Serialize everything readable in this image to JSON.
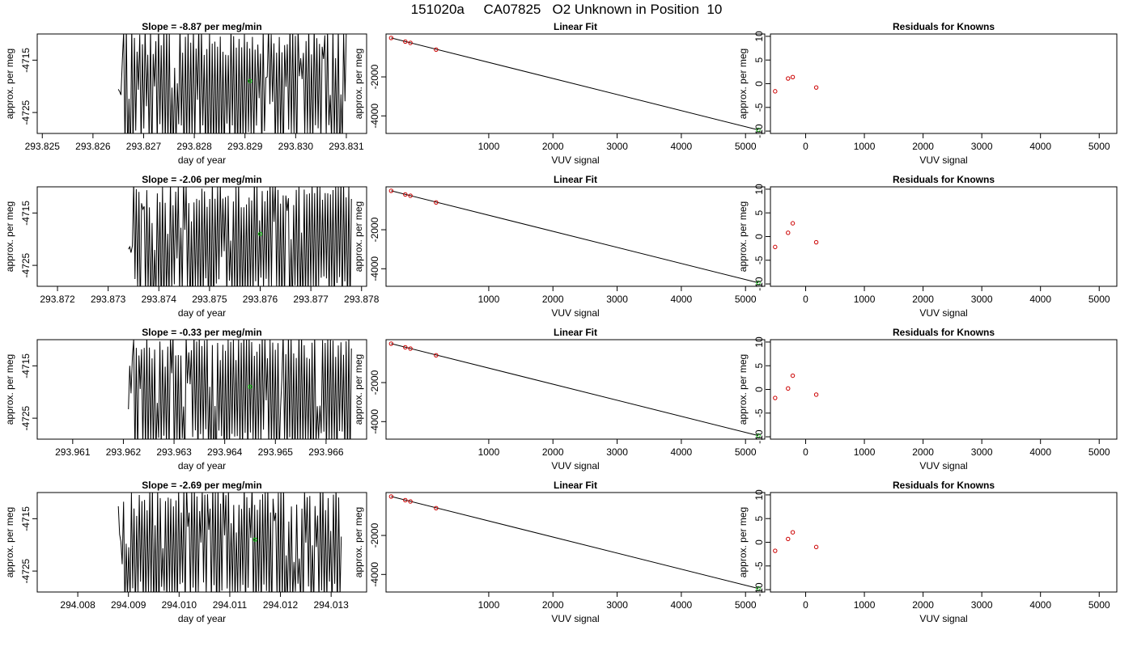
{
  "figure": {
    "title": "151020a     CA07825   O2 Unknown in Position  10"
  },
  "colors": {
    "line": "#000000",
    "knowns": "#cc0000",
    "unknown": "#00cc00"
  },
  "chart_data": [
    {
      "type": "line",
      "panel": "time-series",
      "title": "Slope =  -8.87  per meg/min",
      "xlabel": "day of year",
      "ylabel": "approx. per meg",
      "xlim": [
        293.8249,
        293.8314
      ],
      "ylim": [
        -4729,
        -4710
      ],
      "xticks": [
        "293.825",
        "293.826",
        "293.827",
        "293.828",
        "293.829",
        "293.830",
        "293.831"
      ],
      "yticks": [
        "-4715",
        "-4725"
      ],
      "start": 293.8265,
      "end": 293.831,
      "unknown_point": {
        "x": 293.8291,
        "y": -4719
      }
    },
    {
      "type": "scatter",
      "panel": "linear-fit",
      "title": "Linear Fit",
      "xlabel": "VUV signal",
      "ylabel": "approx. per meg",
      "xlim": [
        -600,
        5300
      ],
      "ylim": [
        -4900,
        200
      ],
      "xticks": [
        "1000",
        "2000",
        "3000",
        "4000",
        "5000"
      ],
      "yticks": [
        "-2000",
        "-4000"
      ],
      "knowns": [
        {
          "x": -520,
          "y": -4
        },
        {
          "x": -300,
          "y": -190
        },
        {
          "x": -220,
          "y": -260
        },
        {
          "x": 180,
          "y": -600
        }
      ],
      "unknown": {
        "x": 5200,
        "y": -4719
      },
      "fit_line": [
        {
          "x": -520,
          "y": -4
        },
        {
          "x": 5200,
          "y": -4719
        }
      ]
    },
    {
      "type": "scatter",
      "panel": "residuals",
      "title": "Residuals for Knowns",
      "xlabel": "VUV signal",
      "ylabel": "approx. per meg",
      "xlim": [
        -600,
        5300
      ],
      "ylim": [
        -10.5,
        10.5
      ],
      "xticks": [
        "0",
        "1000",
        "2000",
        "3000",
        "4000",
        "5000"
      ],
      "yticks": [
        "-10",
        "-5",
        "0",
        "5",
        "10"
      ],
      "points": [
        {
          "x": -520,
          "y": -1.6
        },
        {
          "x": -300,
          "y": 1.1
        },
        {
          "x": -220,
          "y": 1.4
        },
        {
          "x": 180,
          "y": -0.8
        }
      ]
    },
    {
      "type": "line",
      "panel": "time-series",
      "title": "Slope =  -2.06  per meg/min",
      "xlabel": "day of year",
      "ylabel": "approx. per meg",
      "xlim": [
        293.8716,
        293.8781
      ],
      "ylim": [
        -4729,
        -4710
      ],
      "xticks": [
        "293.872",
        "293.873",
        "293.874",
        "293.875",
        "293.876",
        "293.877",
        "293.878"
      ],
      "yticks": [
        "-4715",
        "-4725"
      ],
      "start": 293.8734,
      "end": 293.8778,
      "unknown_point": {
        "x": 293.876,
        "y": -4719
      }
    },
    {
      "type": "scatter",
      "panel": "linear-fit",
      "title": "Linear Fit",
      "xlabel": "VUV signal",
      "ylabel": "approx. per meg",
      "xlim": [
        -600,
        5300
      ],
      "ylim": [
        -4900,
        200
      ],
      "xticks": [
        "1000",
        "2000",
        "3000",
        "4000",
        "5000"
      ],
      "yticks": [
        "-2000",
        "-4000"
      ],
      "knowns": [
        {
          "x": -520,
          "y": -4
        },
        {
          "x": -300,
          "y": -190
        },
        {
          "x": -220,
          "y": -260
        },
        {
          "x": 180,
          "y": -600
        }
      ],
      "unknown": {
        "x": 5200,
        "y": -4719
      },
      "fit_line": [
        {
          "x": -520,
          "y": -4
        },
        {
          "x": 5200,
          "y": -4719
        }
      ]
    },
    {
      "type": "scatter",
      "panel": "residuals",
      "title": "Residuals for Knowns",
      "xlabel": "VUV signal",
      "ylabel": "approx. per meg",
      "xlim": [
        -600,
        5300
      ],
      "ylim": [
        -10.5,
        10.5
      ],
      "xticks": [
        "0",
        "1000",
        "2000",
        "3000",
        "4000",
        "5000"
      ],
      "yticks": [
        "-10",
        "-5",
        "0",
        "5",
        "10"
      ],
      "points": [
        {
          "x": -520,
          "y": -2.2
        },
        {
          "x": -300,
          "y": 0.8
        },
        {
          "x": -220,
          "y": 2.8
        },
        {
          "x": 180,
          "y": -1.2
        }
      ]
    },
    {
      "type": "line",
      "panel": "time-series",
      "title": "Slope =  -0.33  per meg/min",
      "xlabel": "day of year",
      "ylabel": "approx. per meg",
      "xlim": [
        293.9603,
        293.9668
      ],
      "ylim": [
        -4729,
        -4710
      ],
      "xticks": [
        "293.961",
        "293.962",
        "293.963",
        "293.964",
        "293.965",
        "293.966"
      ],
      "yticks": [
        "-4715",
        "-4725"
      ],
      "start": 293.9621,
      "end": 293.9665,
      "unknown_point": {
        "x": 293.9645,
        "y": -4719
      }
    },
    {
      "type": "scatter",
      "panel": "linear-fit",
      "title": "Linear Fit",
      "xlabel": "VUV signal",
      "ylabel": "approx. per meg",
      "xlim": [
        -600,
        5300
      ],
      "ylim": [
        -4900,
        200
      ],
      "xticks": [
        "1000",
        "2000",
        "3000",
        "4000",
        "5000"
      ],
      "yticks": [
        "-2000",
        "-4000"
      ],
      "knowns": [
        {
          "x": -520,
          "y": -4
        },
        {
          "x": -300,
          "y": -190
        },
        {
          "x": -220,
          "y": -260
        },
        {
          "x": 180,
          "y": -600
        }
      ],
      "unknown": {
        "x": 5200,
        "y": -4719
      },
      "fit_line": [
        {
          "x": -520,
          "y": -4
        },
        {
          "x": 5200,
          "y": -4719
        }
      ]
    },
    {
      "type": "scatter",
      "panel": "residuals",
      "title": "Residuals for Knowns",
      "xlabel": "VUV signal",
      "ylabel": "approx. per meg",
      "xlim": [
        -600,
        5300
      ],
      "ylim": [
        -10.5,
        10.5
      ],
      "xticks": [
        "0",
        "1000",
        "2000",
        "3000",
        "4000",
        "5000"
      ],
      "yticks": [
        "-10",
        "-5",
        "0",
        "5",
        "10"
      ],
      "points": [
        {
          "x": -520,
          "y": -1.8
        },
        {
          "x": -300,
          "y": 0.2
        },
        {
          "x": -220,
          "y": 2.9
        },
        {
          "x": 180,
          "y": -1.1
        }
      ]
    },
    {
      "type": "line",
      "panel": "time-series",
      "title": "Slope =  -2.69  per meg/min",
      "xlabel": "day of year",
      "ylabel": "approx. per meg",
      "xlim": [
        294.0072,
        294.0137
      ],
      "ylim": [
        -4729,
        -4710
      ],
      "xticks": [
        "294.008",
        "294.009",
        "294.010",
        "294.011",
        "294.012",
        "294.013"
      ],
      "yticks": [
        "-4715",
        "-4725"
      ],
      "start": 294.0088,
      "end": 294.0132,
      "unknown_point": {
        "x": 294.0115,
        "y": -4719
      }
    },
    {
      "type": "scatter",
      "panel": "linear-fit",
      "title": "Linear Fit",
      "xlabel": "VUV signal",
      "ylabel": "approx. per meg",
      "xlim": [
        -600,
        5300
      ],
      "ylim": [
        -4900,
        200
      ],
      "xticks": [
        "1000",
        "2000",
        "3000",
        "4000",
        "5000"
      ],
      "yticks": [
        "-2000",
        "-4000"
      ],
      "knowns": [
        {
          "x": -520,
          "y": -4
        },
        {
          "x": -300,
          "y": -190
        },
        {
          "x": -220,
          "y": -260
        },
        {
          "x": 180,
          "y": -600
        }
      ],
      "unknown": {
        "x": 5200,
        "y": -4719
      },
      "fit_line": [
        {
          "x": -520,
          "y": -4
        },
        {
          "x": 5200,
          "y": -4719
        }
      ]
    },
    {
      "type": "scatter",
      "panel": "residuals",
      "title": "Residuals for Knowns",
      "xlabel": "VUV signal",
      "ylabel": "approx. per meg",
      "xlim": [
        -600,
        5300
      ],
      "ylim": [
        -10.5,
        10.5
      ],
      "xticks": [
        "0",
        "1000",
        "2000",
        "3000",
        "4000",
        "5000"
      ],
      "yticks": [
        "-10",
        "-5",
        "0",
        "5",
        "10"
      ],
      "points": [
        {
          "x": -520,
          "y": -1.8
        },
        {
          "x": -300,
          "y": 0.7
        },
        {
          "x": -220,
          "y": 2.1
        },
        {
          "x": 180,
          "y": -1.0
        }
      ]
    }
  ]
}
